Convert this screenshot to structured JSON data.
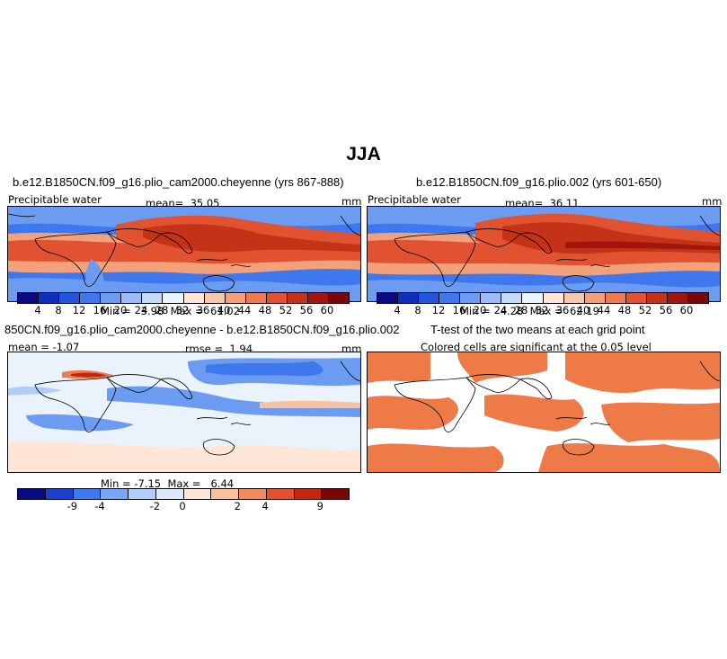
{
  "title": "JJA",
  "panels": [
    {
      "id": "tl",
      "title": "b.e12.B1850CN.f09_g16.plio_cam2000.cheyenne (yrs 867-888)",
      "variable": "Precipitable water",
      "stat_label": "mean=",
      "stat_value": "35.05",
      "units": "mm",
      "min_label": "Min =",
      "min_value": "3.98",
      "max_label": "Max =",
      "max_value": "61.02"
    },
    {
      "id": "tr",
      "title": "b.e12.B1850CN.f09_g16.plio.002 (yrs 601-650)",
      "variable": "Precipitable water",
      "stat_label": "mean=",
      "stat_value": "36.11",
      "units": "mm",
      "min_label": "Min =",
      "min_value": "4.28",
      "max_label": "Max =",
      "max_value": "62.19"
    },
    {
      "id": "bl",
      "title": "850CN.f09_g16.plio_cam2000.cheyenne - b.e12.B1850CN.f09_g16.plio.002",
      "mean_label": "mean =",
      "mean_value": "-1.07",
      "rmse_label": "rmse =",
      "rmse_value": "1.94",
      "units": "mm",
      "min_label": "Min =",
      "min_value": "-7.15",
      "max_label": "Max =",
      "max_value": "6.44"
    },
    {
      "id": "br",
      "title": "T-test of the two means at each grid point",
      "subtitle": "Colored cells are significant at the 0.05 level"
    }
  ],
  "colorbar_abs": {
    "ticks": [
      "4",
      "8",
      "12",
      "16",
      "20",
      "24",
      "28",
      "32",
      "36",
      "40",
      "44",
      "48",
      "52",
      "56",
      "60"
    ],
    "colors": [
      "#0a0a80",
      "#0f2fb8",
      "#2455d8",
      "#3e78ec",
      "#6b9cf2",
      "#9dbdf6",
      "#c6dafa",
      "#eaf2fc",
      "#fde6d6",
      "#f8c6a8",
      "#f3a17a",
      "#ee7a50",
      "#e05230",
      "#c43218",
      "#a0150c",
      "#780808"
    ]
  },
  "colorbar_diff": {
    "ticks": [
      "-9",
      "-4",
      "-2",
      "0",
      "2",
      "4",
      "9"
    ],
    "colors": [
      "#0a0a80",
      "#1a40c8",
      "#3e78ec",
      "#7aa6f2",
      "#b0ccf8",
      "#dde9fb",
      "#fde6d6",
      "#f8c2a0",
      "#ee8a60",
      "#e05230",
      "#c0280e",
      "#7a0606"
    ]
  },
  "ttest_color": "#ee7a48"
}
